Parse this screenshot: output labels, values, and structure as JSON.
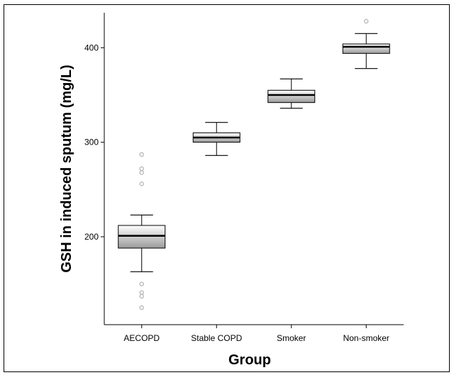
{
  "chart_data": {
    "type": "boxplot",
    "title": "",
    "xlabel": "Group",
    "ylabel": "GSH in induced sputum (mg/L)",
    "ylim": [
      107,
      437
    ],
    "yticks": [
      200,
      300,
      400
    ],
    "grid": false,
    "categories": [
      "AECOPD",
      "Stable COPD",
      "Smoker",
      "Non-smoker"
    ],
    "boxes": [
      {
        "category": "AECOPD",
        "whisker_low": 163,
        "q1": 188,
        "median": 201,
        "q3": 212,
        "whisker_high": 223,
        "outliers": [
          287,
          272,
          268,
          256,
          150,
          141,
          137,
          125
        ]
      },
      {
        "category": "Stable COPD",
        "whisker_low": 286,
        "q1": 300,
        "median": 305,
        "q3": 310,
        "whisker_high": 321,
        "outliers": []
      },
      {
        "category": "Smoker",
        "whisker_low": 336,
        "q1": 342,
        "median": 350,
        "q3": 355,
        "whisker_high": 367,
        "outliers": []
      },
      {
        "category": "Non-smoker",
        "whisker_low": 378,
        "q1": 394,
        "median": 401,
        "q3": 404,
        "whisker_high": 415,
        "outliers": [
          428
        ]
      }
    ],
    "colors": {
      "box_top": "#ffffff",
      "box_bottom": "#9a9a9a",
      "outlier": "#b0b0b0",
      "line": "#000000"
    }
  }
}
